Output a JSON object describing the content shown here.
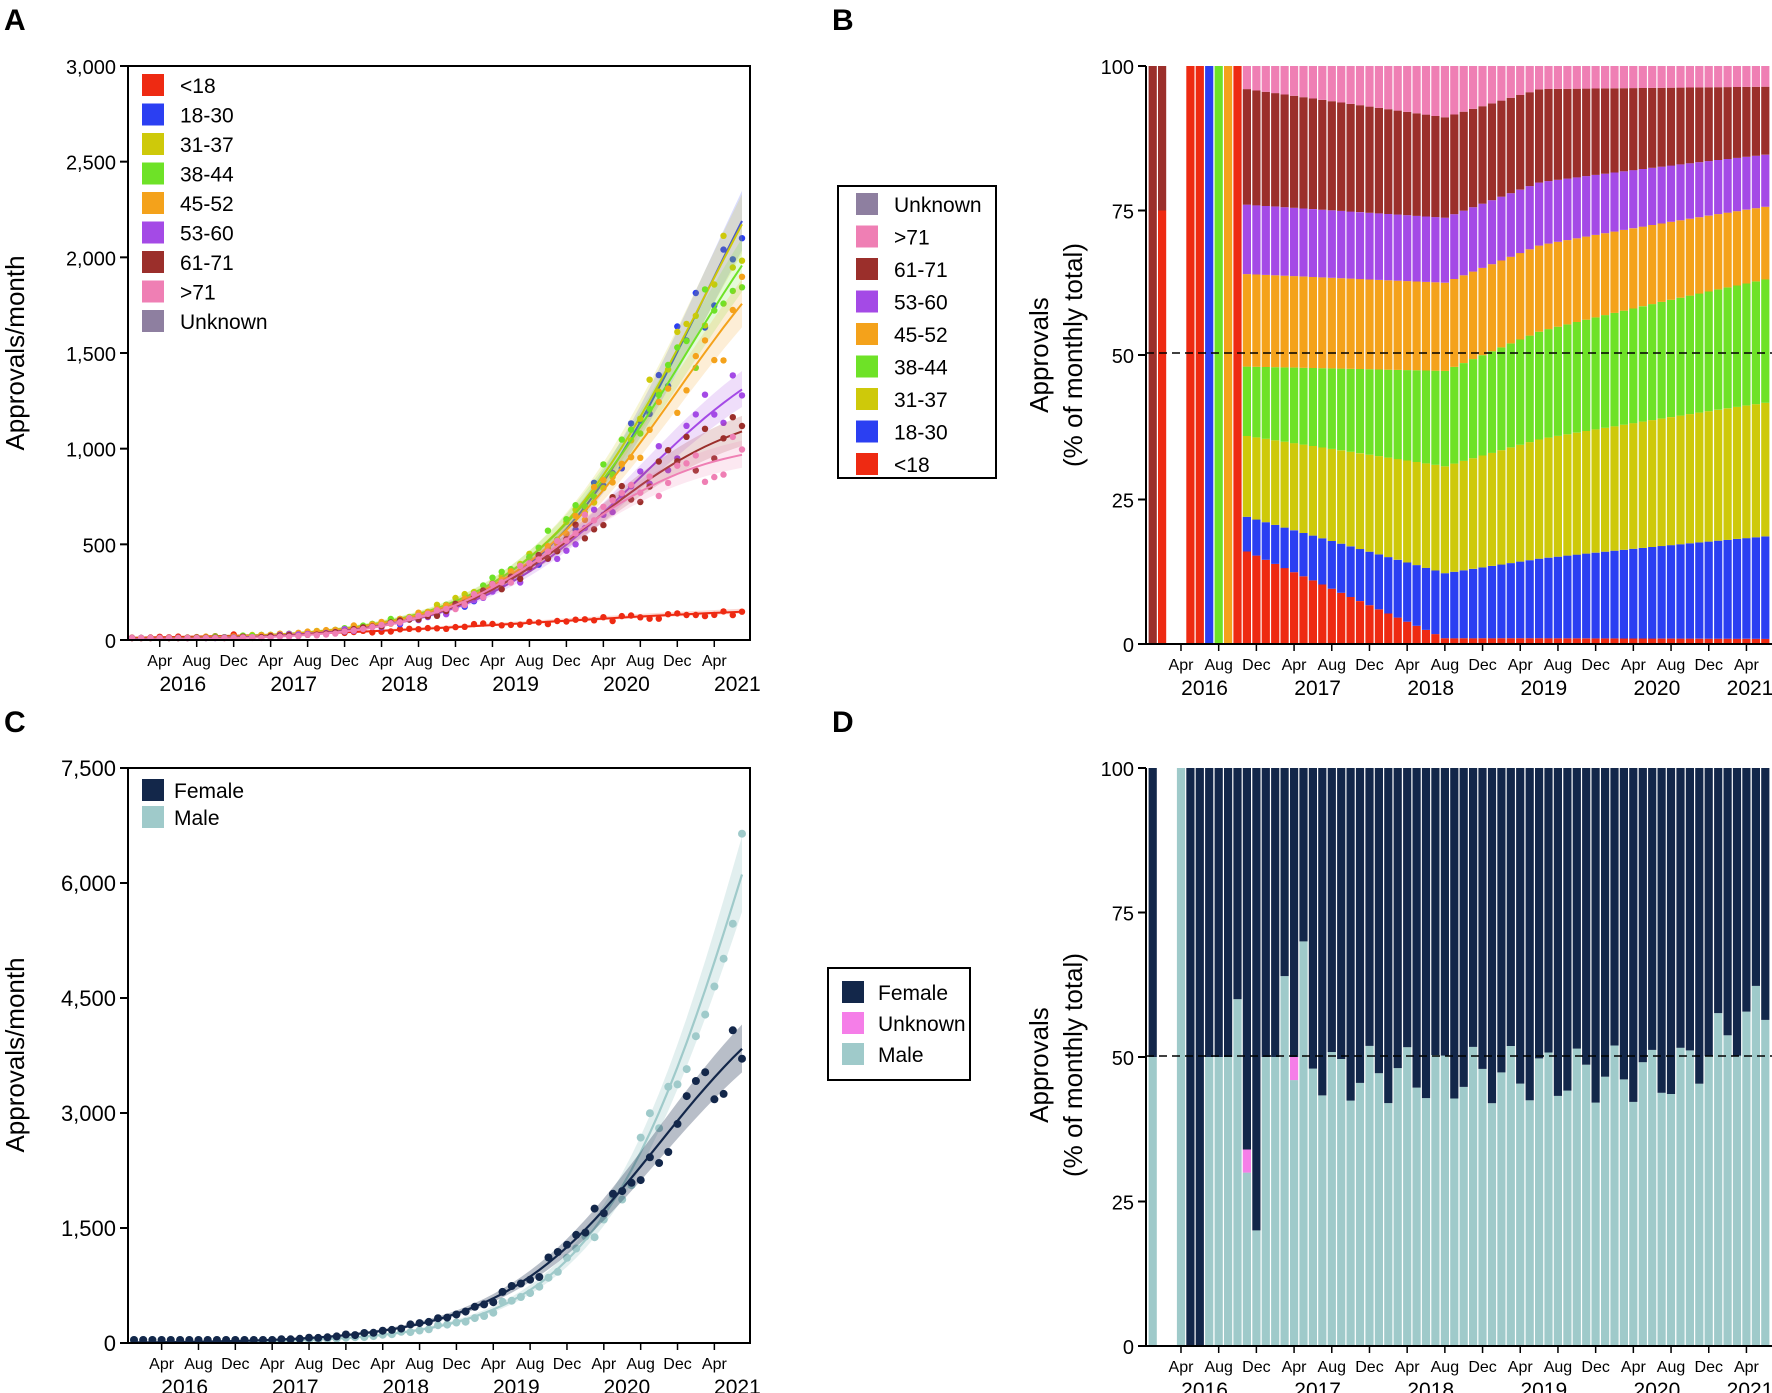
{
  "panels": {
    "a": "A",
    "b": "B",
    "c": "C",
    "d": "D"
  },
  "axes": {
    "months": [
      "Apr",
      "Aug",
      "Dec"
    ],
    "years": [
      "2016",
      "2017",
      "2018",
      "2019",
      "2020",
      "2021"
    ],
    "ylabel_count": "Approvals/month",
    "ylabel_pct_line1": "Approvals",
    "ylabel_pct_line2": "(% of monthly total)"
  },
  "legends": {
    "a": [
      "<18",
      "18-30",
      "31-37",
      "38-44",
      "45-52",
      "53-60",
      "61-71",
      ">71",
      "Unknown"
    ],
    "b": [
      "Unknown",
      ">71",
      "61-71",
      "53-60",
      "45-52",
      "38-44",
      "31-37",
      "18-30",
      "<18"
    ],
    "c": [
      "Female",
      "Male"
    ],
    "d": [
      "Female",
      "Unknown",
      "Male"
    ]
  },
  "colors": {
    "<18": "#ee2a12",
    "18-30": "#2b3ff2",
    "31-37": "#cec90a",
    "38-44": "#6ee227",
    "45-52": "#f4a21b",
    "53-60": "#a44ae6",
    "61-71": "#9b2f2b",
    ">71": "#ef7fb4",
    "Unknown": "#8e7fa0",
    "Female": "#13274a",
    "Male": "#9fcaca",
    "UnknownSex": "#f57ee8"
  },
  "chart_data": [
    {
      "panel": "A",
      "type": "scatter",
      "title": "",
      "xlabel": "",
      "ylabel": "Approvals/month",
      "ylim": [
        0,
        3000
      ],
      "yticks": [
        "0",
        "500",
        "1,000",
        "1,500",
        "2,000",
        "2,500",
        "3,000"
      ],
      "x_start": "2016-01",
      "x_end": "2021-07",
      "series_end_values": {
        "<18": 160,
        "18-30": 2000,
        "31-37": 2080,
        "38-44": 1870,
        "45-52": 1700,
        "53-60": 1330,
        "61-71": 1130,
        ">71": 1000
      },
      "note": "Monthly counts with smoothed fits per age group; values estimated"
    },
    {
      "panel": "B",
      "type": "bar",
      "stacked": true,
      "ylabel": "Approvals (% of monthly total)",
      "ylim": [
        0,
        100
      ],
      "yticks": [
        "0",
        "25",
        "50",
        "75",
        "100"
      ],
      "reference_line": 50,
      "note": "Percentage composition of monthly approvals by age group; values estimated"
    },
    {
      "panel": "C",
      "type": "scatter",
      "ylabel": "Approvals/month",
      "ylim": [
        0,
        7500
      ],
      "yticks": [
        "0",
        "1,500",
        "3,000",
        "4,500",
        "6,000",
        "7,500"
      ],
      "series_end_values": {
        "Female": 4100,
        "Male": 6800
      },
      "note": "Monthly counts by sex with smoothed fits; values estimated"
    },
    {
      "panel": "D",
      "type": "bar",
      "stacked": true,
      "ylabel": "Approvals (% of monthly total)",
      "ylim": [
        0,
        100
      ],
      "yticks": [
        "0",
        "25",
        "50",
        "75",
        "100"
      ],
      "reference_line": 50,
      "note": "Percentage composition of monthly approvals by sex; values estimated"
    }
  ]
}
